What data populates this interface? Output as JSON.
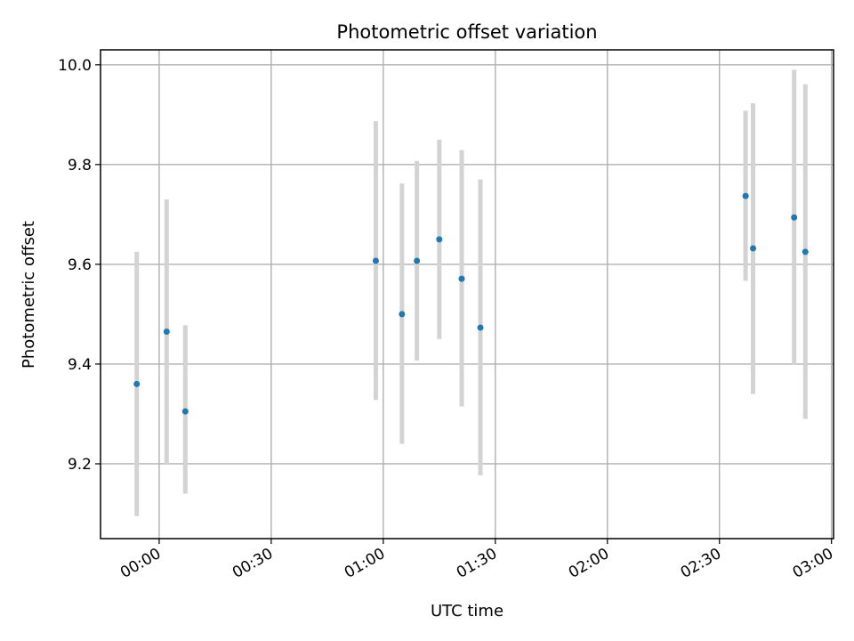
{
  "chart_data": {
    "type": "scatter",
    "title": "Photometric offset variation",
    "xlabel": "UTC time",
    "ylabel": "Photometric offset",
    "x_axis_kind": "time",
    "xlim": [
      "23:45",
      "03:00"
    ],
    "ylim": [
      9.05,
      10.03
    ],
    "x_ticks": [
      "00:00",
      "00:30",
      "01:00",
      "01:30",
      "02:00",
      "02:30",
      "03:00"
    ],
    "y_ticks": [
      "9.2",
      "9.4",
      "9.6",
      "9.8",
      "10.0"
    ],
    "x_tick_rotation": "30 degrees",
    "grid": true,
    "legend": "none",
    "colors": {
      "points": "#1f77b4",
      "error_bars": "#d3d3d3",
      "grid": "#b0b0b0"
    },
    "points": [
      {
        "x": "23:54",
        "y": 9.36,
        "ymin": 9.095,
        "ymax": 9.625
      },
      {
        "x": "00:02",
        "y": 9.465,
        "ymin": 9.2,
        "ymax": 9.73
      },
      {
        "x": "00:07",
        "y": 9.305,
        "ymin": 9.14,
        "ymax": 9.478
      },
      {
        "x": "00:58",
        "y": 9.607,
        "ymin": 9.328,
        "ymax": 9.887
      },
      {
        "x": "01:05",
        "y": 9.5,
        "ymin": 9.24,
        "ymax": 9.762
      },
      {
        "x": "01:09",
        "y": 9.607,
        "ymin": 9.407,
        "ymax": 9.807
      },
      {
        "x": "01:15",
        "y": 9.65,
        "ymin": 9.45,
        "ymax": 9.85
      },
      {
        "x": "01:21",
        "y": 9.571,
        "ymin": 9.315,
        "ymax": 9.829
      },
      {
        "x": "01:26",
        "y": 9.473,
        "ymin": 9.177,
        "ymax": 9.77
      },
      {
        "x": "02:37",
        "y": 9.737,
        "ymin": 9.567,
        "ymax": 9.908
      },
      {
        "x": "02:39",
        "y": 9.632,
        "ymin": 9.34,
        "ymax": 9.923
      },
      {
        "x": "02:50",
        "y": 9.694,
        "ymin": 9.398,
        "ymax": 9.99
      },
      {
        "x": "02:53",
        "y": 9.625,
        "ymin": 9.29,
        "ymax": 9.961
      }
    ]
  }
}
